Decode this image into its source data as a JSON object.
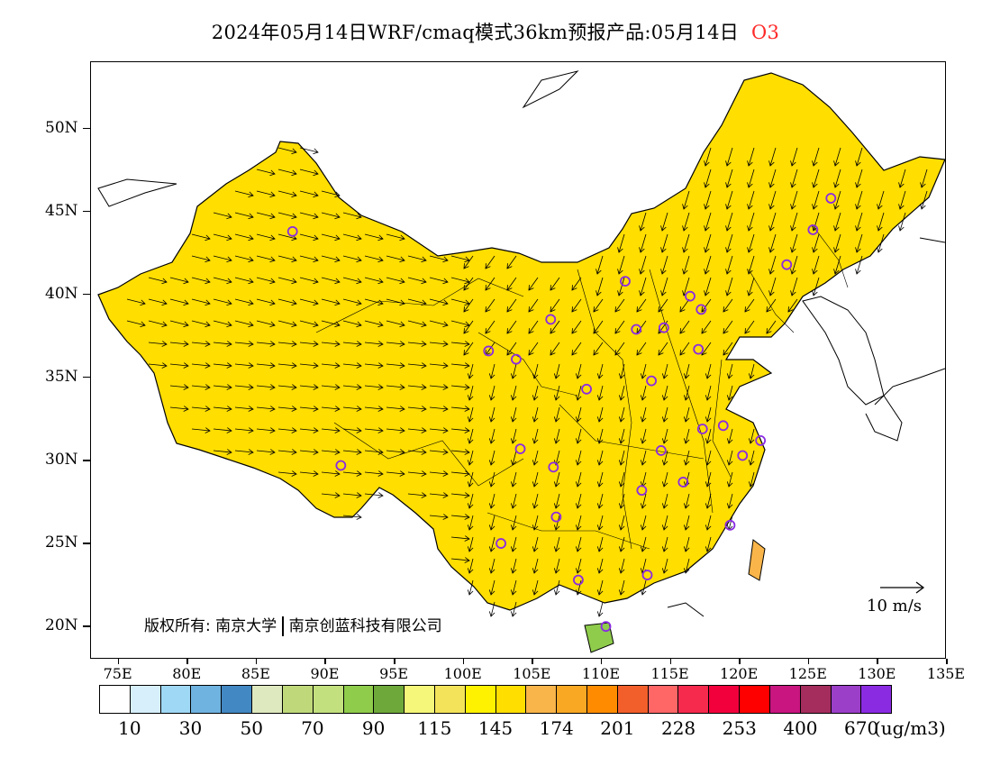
{
  "title": {
    "main": "2024年05月14日WRF/cmaq模式36km预报产品:05月14日",
    "species": "O3"
  },
  "axes": {
    "lat_labels": [
      "50N",
      "45N",
      "40N",
      "35N",
      "30N",
      "25N",
      "20N"
    ],
    "lat_values": [
      50,
      45,
      40,
      35,
      30,
      25,
      20
    ],
    "lon_labels": [
      "75E",
      "80E",
      "85E",
      "90E",
      "95E",
      "100E",
      "105E",
      "110E",
      "115E",
      "120E",
      "125E",
      "130E",
      "135E"
    ],
    "lon_values": [
      75,
      80,
      85,
      90,
      95,
      100,
      105,
      110,
      115,
      120,
      125,
      130,
      135
    ],
    "lon_range": [
      73,
      135
    ],
    "lat_range": [
      18,
      54
    ]
  },
  "colorbar": {
    "colors": [
      "#ffffff",
      "#d6effb",
      "#9fd8f4",
      "#6fb3e0",
      "#4288c2",
      "#dfe9bf",
      "#bfd97a",
      "#c3e07e",
      "#8fcc4c",
      "#6ea83b",
      "#f5f77a",
      "#f3e35a",
      "#fff200",
      "#ffde00",
      "#f9b54a",
      "#f8a823",
      "#ff8c00",
      "#f25f2a",
      "#ff6666",
      "#f52a4d",
      "#f2003c",
      "#ff0000",
      "#c8157f",
      "#a52d5d",
      "#9b3fc8",
      "#8a2be2"
    ],
    "labels": [
      "10",
      "30",
      "50",
      "70",
      "90",
      "115",
      "145",
      "174",
      "201",
      "228",
      "253",
      "400",
      "670"
    ],
    "unit": "(ug/m3)"
  },
  "copyright": {
    "prefix": "版权所有:",
    "org1": "南京大学",
    "org2": "南京创蓝科技有限公司"
  },
  "wind_reference": {
    "label": "10 m/s"
  },
  "regions": [
    {
      "name": "southeast-china-high",
      "color": "#f9b54a"
    },
    {
      "name": "north-china-plain-high",
      "color": "#f25f2a"
    },
    {
      "name": "tibet-high",
      "color": "#f8a823"
    },
    {
      "name": "tibet-south-peak",
      "color": "#f52a4d"
    },
    {
      "name": "northeast-low",
      "color": "#8fcc4c"
    }
  ],
  "cities": [
    {
      "lon": 87.6,
      "lat": 43.8
    },
    {
      "lon": 91.1,
      "lat": 29.7
    },
    {
      "lon": 101.8,
      "lat": 36.6
    },
    {
      "lon": 103.8,
      "lat": 36.1
    },
    {
      "lon": 106.3,
      "lat": 38.5
    },
    {
      "lon": 111.7,
      "lat": 40.8
    },
    {
      "lon": 112.5,
      "lat": 37.9
    },
    {
      "lon": 114.5,
      "lat": 38.0
    },
    {
      "lon": 116.4,
      "lat": 39.9
    },
    {
      "lon": 117.2,
      "lat": 39.1
    },
    {
      "lon": 117.0,
      "lat": 36.7
    },
    {
      "lon": 113.6,
      "lat": 34.8
    },
    {
      "lon": 108.9,
      "lat": 34.3
    },
    {
      "lon": 104.1,
      "lat": 30.7
    },
    {
      "lon": 106.5,
      "lat": 29.6
    },
    {
      "lon": 114.3,
      "lat": 30.6
    },
    {
      "lon": 117.3,
      "lat": 31.9
    },
    {
      "lon": 118.8,
      "lat": 32.1
    },
    {
      "lon": 121.5,
      "lat": 31.2
    },
    {
      "lon": 120.2,
      "lat": 30.3
    },
    {
      "lon": 112.9,
      "lat": 28.2
    },
    {
      "lon": 115.9,
      "lat": 28.7
    },
    {
      "lon": 119.3,
      "lat": 26.1
    },
    {
      "lon": 106.7,
      "lat": 26.6
    },
    {
      "lon": 102.7,
      "lat": 25.0
    },
    {
      "lon": 108.3,
      "lat": 22.8
    },
    {
      "lon": 113.3,
      "lat": 23.1
    },
    {
      "lon": 110.3,
      "lat": 20.0
    },
    {
      "lon": 123.4,
      "lat": 41.8
    },
    {
      "lon": 125.3,
      "lat": 43.9
    },
    {
      "lon": 126.6,
      "lat": 45.8
    }
  ]
}
